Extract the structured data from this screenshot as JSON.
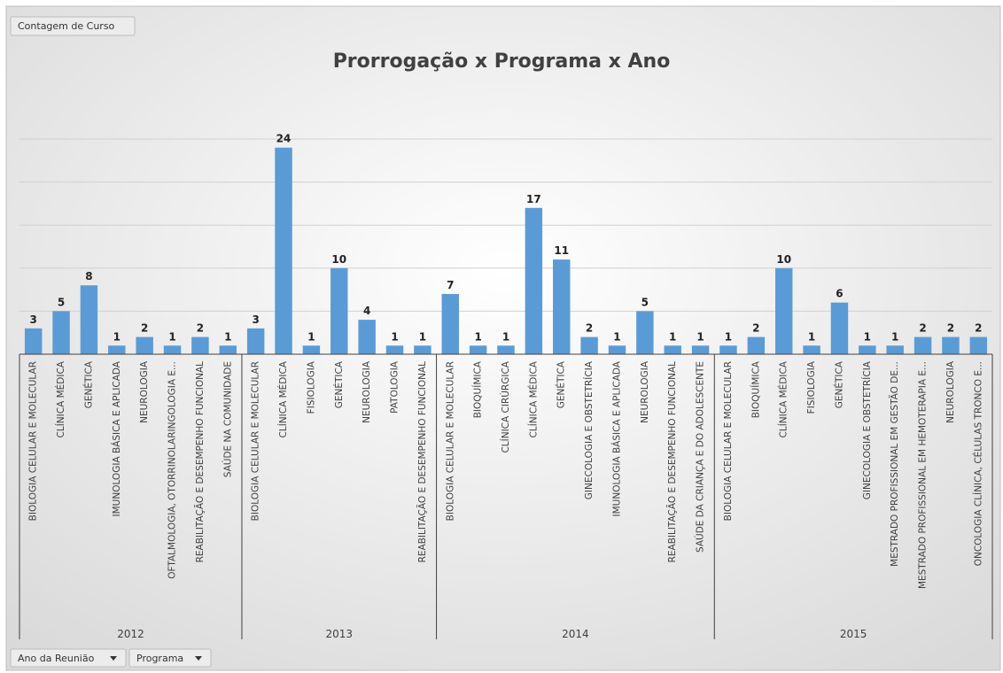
{
  "chart_data": {
    "type": "bar",
    "title": "Prorrogação x Programa x Ano",
    "field_button": "Contagem de Curso",
    "axis_buttons": [
      "Ano da Reunião",
      "Programa"
    ],
    "color": "#5b9bd5",
    "ylim": [
      0,
      25
    ],
    "yticks": [
      0,
      5,
      10,
      15,
      20,
      25
    ],
    "grid": true,
    "groups": [
      {
        "name": "2012",
        "categories": [
          "BIOLOGIA CELULAR E MOLECULAR",
          "CLÍNICA MÉDICA",
          "GENÉTICA",
          "IMUNOLOGIA BÁSICA E APLICADA",
          "NEUROLOGIA",
          "OFTALMOLOGIA, OTORRINOLARINGOLOGIA E...",
          "REABILITAÇÃO E DESEMPENHO FUNCIONAL",
          "SAÚDE NA COMUNIDADE"
        ],
        "values": [
          3,
          5,
          8,
          1,
          2,
          1,
          2,
          1
        ]
      },
      {
        "name": "2013",
        "categories": [
          "BIOLOGIA CELULAR E MOLECULAR",
          "CLÍNICA MÉDICA",
          "FISIOLOGIA",
          "GENÉTICA",
          "NEUROLOGIA",
          "PATOLOGIA",
          "REABILITAÇÃO E DESEMPENHO FUNCIONAL"
        ],
        "values": [
          3,
          24,
          1,
          10,
          4,
          1,
          1
        ]
      },
      {
        "name": "2014",
        "categories": [
          "BIOLOGIA CELULAR E MOLECULAR",
          "BIOQUÍMICA",
          "CLÍNICA CIRÚRGICA",
          "CLÍNICA MÉDICA",
          "GENÉTICA",
          "GINECOLOGIA E OBSTETRÍCIA",
          "IMUNOLOGIA BÁSICA E APLICADA",
          "NEUROLOGIA",
          "REABILITAÇÃO E DESEMPENHO FUNCIONAL",
          "SAÚDE DA CRIANÇA E DO ADOLESCENTE"
        ],
        "values": [
          7,
          1,
          1,
          17,
          11,
          2,
          1,
          5,
          1,
          1
        ]
      },
      {
        "name": "2015",
        "categories": [
          "BIOLOGIA CELULAR E MOLECULAR",
          "BIOQUÍMICA",
          "CLÍNICA MÉDICA",
          "FISIOLOGIA",
          "GENÉTICA",
          "GINECOLOGIA E OBSTETRÍCIA",
          "MESTRADO PROFISSIONAL EM GESTÃO DE...",
          "MESTRADO PROFISSIONAL EM HEMOTERAPIA E...",
          "NEUROLOGIA",
          "ONCOLOGIA CLÍNICA, CÉLULAS TRONCO E..."
        ],
        "values": [
          1,
          2,
          10,
          1,
          6,
          1,
          1,
          2,
          2,
          2
        ]
      }
    ]
  }
}
